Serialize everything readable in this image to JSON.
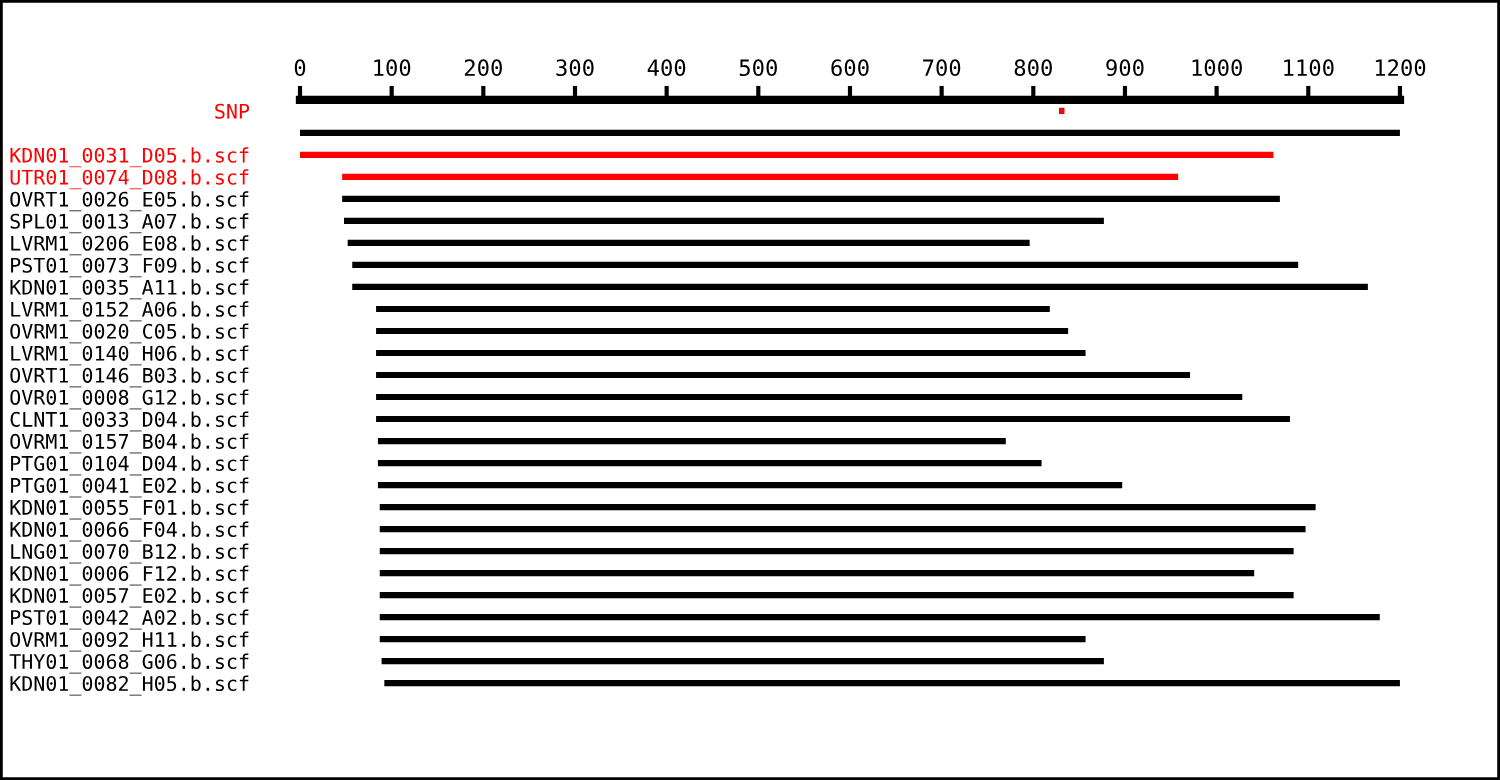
{
  "chart_data": {
    "type": "bar",
    "orientation": "horizontal",
    "categories": [
      "SNP",
      null,
      "KDN01_0031_D05.b.scf",
      "UTR01_0074_D08.b.scf",
      "OVRT1_0026_E05.b.scf",
      "SPL01_0013_A07.b.scf",
      "LVRM1_0206_E08.b.scf",
      "PST01_0073_F09.b.scf",
      "KDN01_0035_A11.b.scf",
      "LVRM1_0152_A06.b.scf",
      "OVRM1_0020_C05.b.scf",
      "LVRM1_0140_H06.b.scf",
      "OVRT1_0146_B03.b.scf",
      "OVR01_0008_G12.b.scf",
      "CLNT1_0033_D04.b.scf",
      "OVRM1_0157_B04.b.scf",
      "PTG01_0104_D04.b.scf",
      "PTG01_0041_E02.b.scf",
      "KDN01_0055_F01.b.scf",
      "KDN01_0066_F04.b.scf",
      "LNG01_0070_B12.b.scf",
      "KDN01_0006_F12.b.scf",
      "KDN01_0057_E02.b.scf",
      "PST01_0042_A02.b.scf",
      "OVRM1_0092_H11.b.scf",
      "THY01_0068_G06.b.scf",
      "KDN01_0082_H05.b.scf"
    ],
    "base": [
      828,
      0,
      0,
      46,
      46,
      48,
      52,
      57,
      57,
      83,
      83,
      83,
      83,
      83,
      83,
      85,
      85,
      85,
      87,
      87,
      87,
      87,
      87,
      87,
      87,
      89,
      92
    ],
    "values": [
      6,
      1200,
      1062,
      912,
      1023,
      829,
      744,
      1032,
      1108,
      735,
      755,
      774,
      888,
      945,
      997,
      685,
      724,
      812,
      1021,
      1010,
      997,
      954,
      997,
      1091,
      770,
      788,
      1108
    ],
    "colors": [
      "#ff0000",
      "#000000",
      "#ff0000",
      "#ff0000",
      "#000000",
      "#000000",
      "#000000",
      "#000000",
      "#000000",
      "#000000",
      "#000000",
      "#000000",
      "#000000",
      "#000000",
      "#000000",
      "#000000",
      "#000000",
      "#000000",
      "#000000",
      "#000000",
      "#000000",
      "#000000",
      "#000000",
      "#000000",
      "#000000",
      "#000000",
      "#000000"
    ],
    "xlim": [
      0,
      1200
    ],
    "xticks": [
      0,
      100,
      200,
      300,
      400,
      500,
      600,
      700,
      800,
      900,
      1000,
      1100,
      1200
    ]
  }
}
